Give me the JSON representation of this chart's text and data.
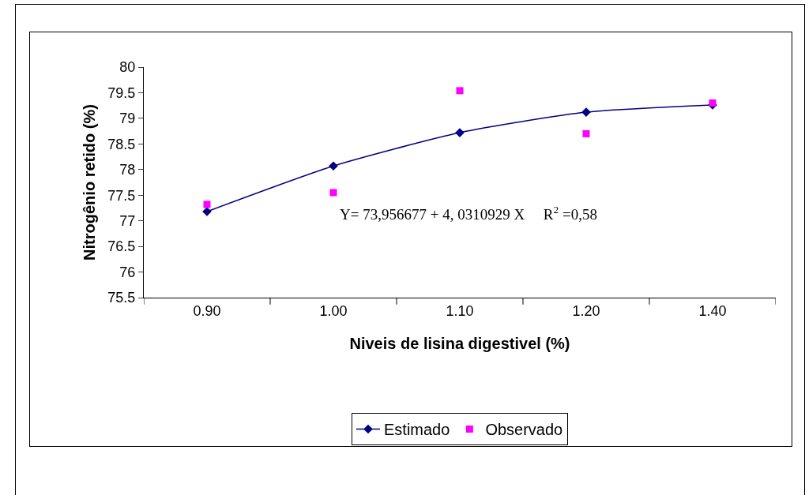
{
  "chart_data": {
    "type": "line",
    "xlabel": "Niveis de lisina digestivel (%)",
    "ylabel": "Nitrogênio retido (%)",
    "categories": [
      "0.90",
      "1.00",
      "1.10",
      "1.20",
      "1.40"
    ],
    "series": [
      {
        "name": "Estimado",
        "color": "#000080",
        "marker": "diamond",
        "values": [
          77.18,
          78.07,
          78.72,
          79.12,
          79.26
        ]
      },
      {
        "name": "Observado",
        "type": "scatter",
        "color": "#ff00ff",
        "marker": "square",
        "values": [
          77.32,
          77.55,
          79.54,
          78.7,
          79.3
        ]
      }
    ],
    "ylim": [
      75.5,
      80
    ],
    "yticks": [
      75.5,
      76,
      76.5,
      77,
      77.5,
      78,
      78.5,
      79,
      79.5,
      80
    ],
    "grid": false,
    "legend": "bottom",
    "annotations": [
      "Y= 73,956677 + 4, 0310929 X     R$^{2}$ =0,58"
    ]
  }
}
